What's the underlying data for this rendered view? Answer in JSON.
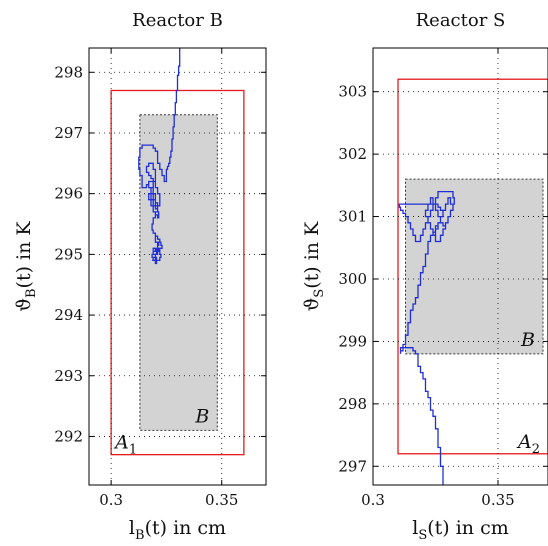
{
  "chart_data": [
    {
      "type": "line",
      "title": "Reactor B",
      "xlabel": {
        "main": "l",
        "sub": "B",
        "rest": "(t) in cm"
      },
      "ylabel": {
        "main": "ϑ",
        "sub": "B",
        "rest": "(t) in K"
      },
      "xlim": [
        0.29,
        0.37
      ],
      "ylim": [
        291.2,
        298.4
      ],
      "xticks": [
        0.3,
        0.35
      ],
      "xtick_labels": [
        "0.3",
        "0.35"
      ],
      "yticks": [
        292,
        293,
        294,
        295,
        296,
        297,
        298
      ],
      "ytick_labels": [
        "292",
        "293",
        "294",
        "295",
        "296",
        "297",
        "298"
      ],
      "grid": true,
      "regions": [
        {
          "label": "A",
          "sub": "1",
          "kind": "outer",
          "x": [
            0.3,
            0.36
          ],
          "y": [
            291.7,
            297.7
          ],
          "color": "#e41a1c"
        },
        {
          "label": "B",
          "sub": "",
          "kind": "inner",
          "x": [
            0.313,
            0.348
          ],
          "y": [
            292.1,
            297.3
          ],
          "color": "#d3d3d3"
        }
      ],
      "series": [
        {
          "color": "#1f2fd6",
          "x": [
            0.331,
            0.331,
            0.3305,
            0.33,
            0.33,
            0.3295,
            0.3295,
            0.329,
            0.329,
            0.3285,
            0.3285,
            0.328,
            0.328,
            0.3275,
            0.3275,
            0.327,
            0.327,
            0.3265,
            0.326,
            0.3255,
            0.325,
            0.325,
            0.3245,
            0.324,
            0.323,
            0.322,
            0.322,
            0.321,
            0.321,
            0.32,
            0.319,
            0.318,
            0.317,
            0.316,
            0.315,
            0.314,
            0.313,
            0.3125,
            0.3125,
            0.313,
            0.314,
            0.314,
            0.315,
            0.316,
            0.317,
            0.318,
            0.319,
            0.32,
            0.321,
            0.321,
            0.32,
            0.319,
            0.318,
            0.318,
            0.317,
            0.318,
            0.319,
            0.319,
            0.32,
            0.32,
            0.321,
            0.3215,
            0.321,
            0.32,
            0.319,
            0.318,
            0.317,
            0.318,
            0.319,
            0.32,
            0.32,
            0.319,
            0.318,
            0.317,
            0.316,
            0.316,
            0.317,
            0.318,
            0.319,
            0.32,
            0.321,
            0.322,
            0.322,
            0.321,
            0.32,
            0.319,
            0.3185,
            0.319,
            0.32,
            0.321,
            0.322,
            0.3215,
            0.321,
            0.32,
            0.319,
            0.32,
            0.321,
            0.322,
            0.323,
            0.3225,
            0.322,
            0.321,
            0.32,
            0.321,
            0.322,
            0.3225,
            0.322,
            0.321,
            0.3205,
            0.32,
            0.3205,
            0.321,
            0.3215,
            0.321,
            0.32,
            0.319,
            0.3185,
            0.319,
            0.32,
            0.321,
            0.3205,
            0.32,
            0.319,
            0.3185,
            0.319,
            0.32,
            0.3205,
            0.32,
            0.3195
          ],
          "y": [
            298.4,
            298.2,
            298.1,
            297.95,
            297.8,
            297.7,
            297.6,
            297.5,
            297.4,
            297.3,
            297.2,
            297.1,
            297.0,
            296.9,
            296.8,
            296.7,
            296.6,
            296.6,
            296.5,
            296.45,
            296.4,
            296.3,
            296.2,
            296.2,
            296.3,
            296.4,
            296.5,
            296.5,
            296.6,
            296.7,
            296.75,
            296.8,
            296.8,
            296.8,
            296.8,
            296.8,
            296.75,
            296.6,
            296.5,
            296.4,
            296.3,
            296.2,
            296.1,
            296.1,
            296.15,
            296.1,
            296.0,
            295.9,
            295.85,
            295.8,
            295.75,
            295.8,
            295.9,
            296.0,
            296.1,
            296.2,
            296.2,
            296.1,
            296.0,
            295.9,
            295.8,
            295.7,
            295.6,
            295.65,
            295.7,
            295.8,
            295.9,
            296.0,
            296.1,
            296.2,
            296.3,
            296.4,
            296.5,
            296.5,
            296.45,
            296.4,
            296.35,
            296.3,
            296.25,
            296.2,
            296.1,
            296.0,
            295.9,
            295.8,
            295.7,
            295.6,
            295.5,
            295.4,
            295.35,
            295.3,
            295.25,
            295.2,
            295.15,
            295.1,
            295.05,
            295.0,
            295.0,
            295.05,
            295.1,
            295.15,
            295.2,
            295.25,
            295.3,
            295.2,
            295.1,
            295.0,
            294.95,
            294.9,
            294.9,
            294.95,
            295.0,
            295.05,
            295.1,
            295.05,
            295.0,
            294.95,
            294.9,
            294.9,
            294.95,
            295.0,
            295.05,
            295.1,
            295.1,
            295.0,
            294.95,
            294.9,
            294.85,
            294.9,
            294.95
          ]
        }
      ]
    },
    {
      "type": "line",
      "title": "Reactor S",
      "xlabel": {
        "main": "l",
        "sub": "S",
        "rest": "(t) in cm"
      },
      "ylabel": {
        "main": "ϑ",
        "sub": "S",
        "rest": "(t) in K"
      },
      "xlim": [
        0.3,
        0.37
      ],
      "ylim": [
        296.7,
        303.7
      ],
      "xticks": [
        0.3,
        0.35
      ],
      "xtick_labels": [
        "0.3",
        "0.35"
      ],
      "yticks": [
        297,
        298,
        299,
        300,
        301,
        302,
        303
      ],
      "ytick_labels": [
        "297",
        "298",
        "299",
        "300",
        "301",
        "302",
        "303"
      ],
      "grid": true,
      "regions": [
        {
          "label": "A",
          "sub": "2",
          "kind": "outer",
          "x": [
            0.31,
            0.37
          ],
          "y": [
            297.2,
            303.2
          ],
          "color": "#e41a1c"
        },
        {
          "label": "B",
          "sub": "",
          "kind": "inner",
          "x": [
            0.313,
            0.368
          ],
          "y": [
            298.8,
            301.6
          ],
          "color": "#d3d3d3"
        }
      ],
      "series": [
        {
          "color": "#1f2fd6",
          "x": [
            0.328,
            0.328,
            0.327,
            0.327,
            0.326,
            0.326,
            0.325,
            0.325,
            0.324,
            0.323,
            0.323,
            0.322,
            0.321,
            0.321,
            0.32,
            0.319,
            0.318,
            0.318,
            0.317,
            0.316,
            0.315,
            0.314,
            0.313,
            0.312,
            0.311,
            0.311,
            0.311,
            0.312,
            0.312,
            0.313,
            0.313,
            0.314,
            0.314,
            0.315,
            0.315,
            0.316,
            0.317,
            0.318,
            0.318,
            0.319,
            0.319,
            0.32,
            0.321,
            0.321,
            0.322,
            0.322,
            0.323,
            0.324,
            0.325,
            0.325,
            0.326,
            0.327,
            0.327,
            0.328,
            0.328,
            0.327,
            0.326,
            0.325,
            0.324,
            0.323,
            0.322,
            0.321,
            0.32,
            0.319,
            0.318,
            0.317,
            0.316,
            0.315,
            0.314,
            0.313,
            0.312,
            0.311,
            0.3105,
            0.311,
            0.312,
            0.313,
            0.314,
            0.315,
            0.316,
            0.317,
            0.318,
            0.319,
            0.32,
            0.321,
            0.322,
            0.323,
            0.324,
            0.325,
            0.326,
            0.327,
            0.328,
            0.329,
            0.33,
            0.331,
            0.332,
            0.3325,
            0.332,
            0.331,
            0.33,
            0.329,
            0.328,
            0.327,
            0.326,
            0.325,
            0.324,
            0.323,
            0.322,
            0.321,
            0.322,
            0.323,
            0.324,
            0.325,
            0.326,
            0.327,
            0.328,
            0.329,
            0.33,
            0.331,
            0.332,
            0.331,
            0.33,
            0.329,
            0.328,
            0.327,
            0.326,
            0.325,
            0.324
          ],
          "y": [
            296.7,
            296.85,
            297.0,
            297.15,
            297.3,
            297.45,
            297.6,
            297.7,
            297.8,
            297.9,
            298.0,
            298.1,
            298.2,
            298.3,
            298.4,
            298.5,
            298.6,
            298.7,
            298.8,
            298.85,
            298.9,
            298.9,
            298.9,
            298.9,
            298.9,
            298.85,
            298.8,
            298.85,
            298.9,
            298.95,
            299.0,
            299.1,
            299.2,
            299.3,
            299.4,
            299.5,
            299.6,
            299.7,
            299.8,
            299.9,
            300.0,
            300.1,
            300.2,
            300.3,
            300.4,
            300.5,
            300.6,
            300.7,
            300.75,
            300.8,
            300.85,
            300.9,
            300.95,
            301.0,
            301.05,
            301.1,
            301.15,
            301.2,
            301.2,
            301.2,
            301.2,
            301.2,
            301.2,
            301.2,
            301.2,
            301.2,
            301.2,
            301.2,
            301.2,
            301.2,
            301.2,
            301.2,
            301.2,
            301.15,
            301.1,
            301.05,
            301.0,
            300.9,
            300.8,
            300.7,
            300.6,
            300.6,
            300.7,
            300.8,
            300.9,
            301.0,
            301.1,
            301.2,
            301.3,
            301.4,
            301.4,
            301.4,
            301.4,
            301.4,
            301.4,
            301.3,
            301.2,
            301.1,
            301.0,
            300.9,
            300.8,
            300.7,
            300.6,
            300.6,
            300.7,
            300.8,
            300.9,
            301.0,
            301.1,
            301.2,
            301.3,
            301.2,
            301.1,
            301.0,
            300.9,
            300.85,
            300.9,
            301.0,
            301.1,
            301.2,
            301.3,
            301.2,
            301.1,
            301.0,
            300.9,
            300.8,
            300.7
          ]
        }
      ]
    }
  ]
}
